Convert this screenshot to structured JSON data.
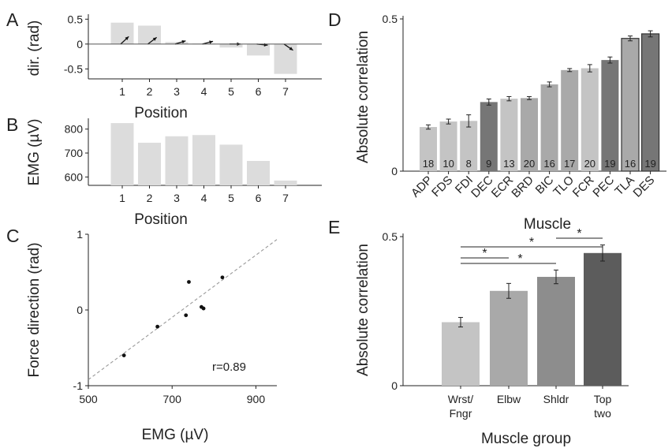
{
  "colors": {
    "light": "#dcdcdc",
    "mid_light": "#c4c4c4",
    "mid": "#a9a9a9",
    "mid_dark": "#8d8d8d",
    "dark": "#767676",
    "darkest": "#5c5c5c",
    "text": "#222222",
    "dash": "#999999"
  },
  "panels": {
    "A": {
      "letter": "A"
    },
    "B": {
      "letter": "B"
    },
    "C": {
      "letter": "C",
      "r_label": "r=0.89"
    },
    "D": {
      "letter": "D"
    },
    "E": {
      "letter": "E"
    }
  },
  "chart_data": [
    {
      "id": "A",
      "type": "bar",
      "categories": [
        "1",
        "2",
        "3",
        "4",
        "5",
        "6",
        "7"
      ],
      "values": [
        0.43,
        0.37,
        0.04,
        0.01,
        -0.07,
        -0.23,
        -0.6
      ],
      "arrow_direction_rad": [
        0.75,
        0.65,
        0.3,
        0.25,
        0.0,
        -0.1,
        -0.6
      ],
      "xlabel": "Position",
      "ylabel": "dir. (rad)",
      "ylim": [
        -0.7,
        0.6
      ],
      "yticks": [
        0.5,
        0,
        -0.5
      ],
      "ytick_labels": [
        "0.5",
        "0",
        "-0.5"
      ],
      "zero_line": true
    },
    {
      "id": "B",
      "type": "bar",
      "categories": [
        "1",
        "2",
        "3",
        "4",
        "5",
        "6",
        "7"
      ],
      "values": [
        825,
        743,
        770,
        775,
        735,
        667,
        585
      ],
      "xlabel": "Position",
      "ylabel": "EMG (µV)",
      "ylim": [
        565,
        845
      ],
      "yticks": [
        800,
        700,
        600
      ],
      "ytick_labels": [
        "800",
        "700",
        "600"
      ]
    },
    {
      "id": "C",
      "type": "scatter",
      "points": [
        {
          "x": 585,
          "y": -0.6
        },
        {
          "x": 665,
          "y": -0.22
        },
        {
          "x": 733,
          "y": -0.07
        },
        {
          "x": 740,
          "y": 0.37
        },
        {
          "x": 770,
          "y": 0.04
        },
        {
          "x": 775,
          "y": 0.02
        },
        {
          "x": 820,
          "y": 0.43
        }
      ],
      "fit_line": [
        {
          "x": 500,
          "y": -0.92
        },
        {
          "x": 950,
          "y": 0.93
        }
      ],
      "xlabel": "EMG (µV)",
      "ylabel": "Force direction (rad)",
      "xlim": [
        500,
        950
      ],
      "ylim": [
        -1,
        1
      ],
      "xticks": [
        500,
        700,
        900
      ],
      "xtick_labels": [
        "500",
        "700",
        "900"
      ],
      "yticks": [
        1,
        0,
        -1
      ],
      "ytick_labels": [
        "1",
        "0",
        "-1"
      ]
    },
    {
      "id": "D",
      "type": "bar",
      "categories": [
        "ADP",
        "FDS",
        "FDI",
        "DEC",
        "ECR",
        "BRD",
        "BIC",
        "TLO",
        "FCR",
        "PEC",
        "TLA",
        "DES"
      ],
      "values": [
        0.145,
        0.163,
        0.165,
        0.227,
        0.238,
        0.24,
        0.285,
        0.332,
        0.338,
        0.365,
        0.436,
        0.451
      ],
      "errors": [
        0.007,
        0.008,
        0.02,
        0.01,
        0.007,
        0.005,
        0.008,
        0.005,
        0.012,
        0.01,
        0.008,
        0.01
      ],
      "counts": [
        "18",
        "10",
        "8",
        "9",
        "13",
        "20",
        "16",
        "17",
        "20",
        "19",
        "16",
        "19"
      ],
      "color_keys": [
        "mid_light",
        "mid_light",
        "mid_light",
        "dark",
        "mid_light",
        "mid",
        "mid",
        "mid",
        "mid_light",
        "dark",
        "mid",
        "dark"
      ],
      "outlined": [
        false,
        false,
        false,
        false,
        false,
        false,
        false,
        false,
        false,
        false,
        true,
        true
      ],
      "xlabel": "Muscle",
      "ylabel": "Absolute correlation",
      "ylim": [
        0,
        0.5
      ],
      "yticks": [
        0.5,
        0
      ],
      "ytick_labels": [
        "0.5",
        "0"
      ]
    },
    {
      "id": "E",
      "type": "bar",
      "categories": [
        [
          "Wrst/",
          "Fngr"
        ],
        [
          "Elbw"
        ],
        [
          "Shldr"
        ],
        [
          "Top",
          "two"
        ]
      ],
      "values": [
        0.213,
        0.318,
        0.365,
        0.445
      ],
      "errors": [
        0.016,
        0.025,
        0.023,
        0.027
      ],
      "color_keys": [
        "mid_light",
        "mid",
        "mid_dark",
        "darkest"
      ],
      "significance": [
        {
          "from": 0,
          "to": 1,
          "label": "*"
        },
        {
          "from": 0,
          "to": 2,
          "label": "*"
        },
        {
          "from": 0,
          "to": 3,
          "label": "*"
        },
        {
          "from": 2,
          "to": 3,
          "label": "*"
        }
      ],
      "xlabel": "Muscle group",
      "ylabel": "Absolute correlation",
      "ylim": [
        0,
        0.5
      ],
      "yticks": [
        0.5,
        0
      ],
      "ytick_labels": [
        "0.5",
        "0"
      ]
    }
  ]
}
